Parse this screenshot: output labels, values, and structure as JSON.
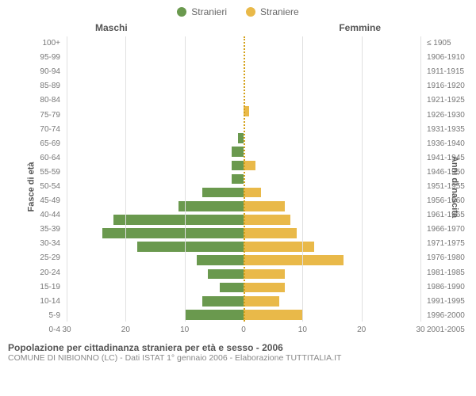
{
  "legend": {
    "male": {
      "label": "Stranieri",
      "color": "#6a994e"
    },
    "female": {
      "label": "Straniere",
      "color": "#e9b949"
    }
  },
  "column_titles": {
    "left": "Maschi",
    "right": "Femmine"
  },
  "axis_titles": {
    "left": "Fasce di età",
    "right": "Anni di nascita"
  },
  "pyramid": {
    "type": "population-pyramid",
    "x_max": 30,
    "x_ticks": [
      0,
      10,
      20,
      30
    ],
    "bar_colors": {
      "male": "#6a994e",
      "female": "#e9b949"
    },
    "grid_color": "#e0e0e0",
    "center_line_color": "#d4a017",
    "background_color": "#ffffff",
    "label_fontsize": 10,
    "rows": [
      {
        "age": "100+",
        "birth": "≤ 1905",
        "m": 0,
        "f": 0
      },
      {
        "age": "95-99",
        "birth": "1906-1910",
        "m": 0,
        "f": 0
      },
      {
        "age": "90-94",
        "birth": "1911-1915",
        "m": 0,
        "f": 0
      },
      {
        "age": "85-89",
        "birth": "1916-1920",
        "m": 0,
        "f": 0
      },
      {
        "age": "80-84",
        "birth": "1921-1925",
        "m": 0,
        "f": 0
      },
      {
        "age": "75-79",
        "birth": "1926-1930",
        "m": 0,
        "f": 1
      },
      {
        "age": "70-74",
        "birth": "1931-1935",
        "m": 0,
        "f": 0
      },
      {
        "age": "65-69",
        "birth": "1936-1940",
        "m": 1,
        "f": 0
      },
      {
        "age": "60-64",
        "birth": "1941-1945",
        "m": 2,
        "f": 0
      },
      {
        "age": "55-59",
        "birth": "1946-1950",
        "m": 2,
        "f": 2
      },
      {
        "age": "50-54",
        "birth": "1951-1955",
        "m": 2,
        "f": 0
      },
      {
        "age": "45-49",
        "birth": "1956-1960",
        "m": 7,
        "f": 3
      },
      {
        "age": "40-44",
        "birth": "1961-1965",
        "m": 11,
        "f": 7
      },
      {
        "age": "35-39",
        "birth": "1966-1970",
        "m": 22,
        "f": 8
      },
      {
        "age": "30-34",
        "birth": "1971-1975",
        "m": 24,
        "f": 9
      },
      {
        "age": "25-29",
        "birth": "1976-1980",
        "m": 18,
        "f": 12
      },
      {
        "age": "20-24",
        "birth": "1981-1985",
        "m": 8,
        "f": 17
      },
      {
        "age": "15-19",
        "birth": "1986-1990",
        "m": 6,
        "f": 7
      },
      {
        "age": "10-14",
        "birth": "1991-1995",
        "m": 4,
        "f": 7
      },
      {
        "age": "5-9",
        "birth": "1996-2000",
        "m": 7,
        "f": 6
      },
      {
        "age": "0-4",
        "birth": "2001-2005",
        "m": 10,
        "f": 10
      }
    ]
  },
  "footer": {
    "title": "Popolazione per cittadinanza straniera per età e sesso - 2006",
    "subtitle": "COMUNE DI NIBIONNO (LC) - Dati ISTAT 1° gennaio 2006 - Elaborazione TUTTITALIA.IT"
  }
}
